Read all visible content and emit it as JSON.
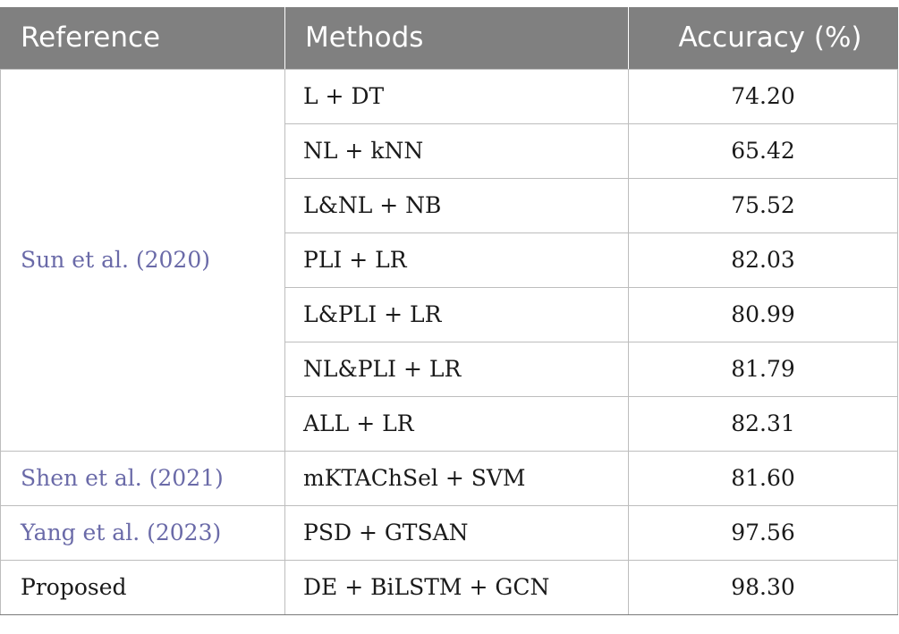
{
  "table": {
    "headers": {
      "reference": "Reference",
      "methods": "Methods",
      "accuracy": "Accuracy (%)"
    },
    "groups": [
      {
        "reference": "Sun et al. (2020)",
        "is_link": true,
        "rows": [
          {
            "method": "L + DT",
            "accuracy": "74.20"
          },
          {
            "method": "NL + kNN",
            "accuracy": "65.42"
          },
          {
            "method": "L&NL + NB",
            "accuracy": "75.52"
          },
          {
            "method": "PLI + LR",
            "accuracy": "82.03"
          },
          {
            "method": "L&PLI + LR",
            "accuracy": "80.99"
          },
          {
            "method": "NL&PLI + LR",
            "accuracy": "81.79"
          },
          {
            "method": "ALL + LR",
            "accuracy": "82.31"
          }
        ]
      },
      {
        "reference": "Shen et al. (2021)",
        "is_link": true,
        "rows": [
          {
            "method": "mKTAChSel + SVM",
            "accuracy": "81.60"
          }
        ]
      },
      {
        "reference": "Yang et al. (2023)",
        "is_link": true,
        "rows": [
          {
            "method": "PSD + GTSAN",
            "accuracy": "97.56"
          }
        ]
      },
      {
        "reference": "Proposed",
        "is_link": false,
        "rows": [
          {
            "method": "DE + BiLSTM + GCN",
            "accuracy": "98.30"
          }
        ]
      }
    ]
  },
  "colors": {
    "header_bg": "#808080",
    "link_text": "#6a6aa8",
    "border": "#bdbdbd"
  }
}
